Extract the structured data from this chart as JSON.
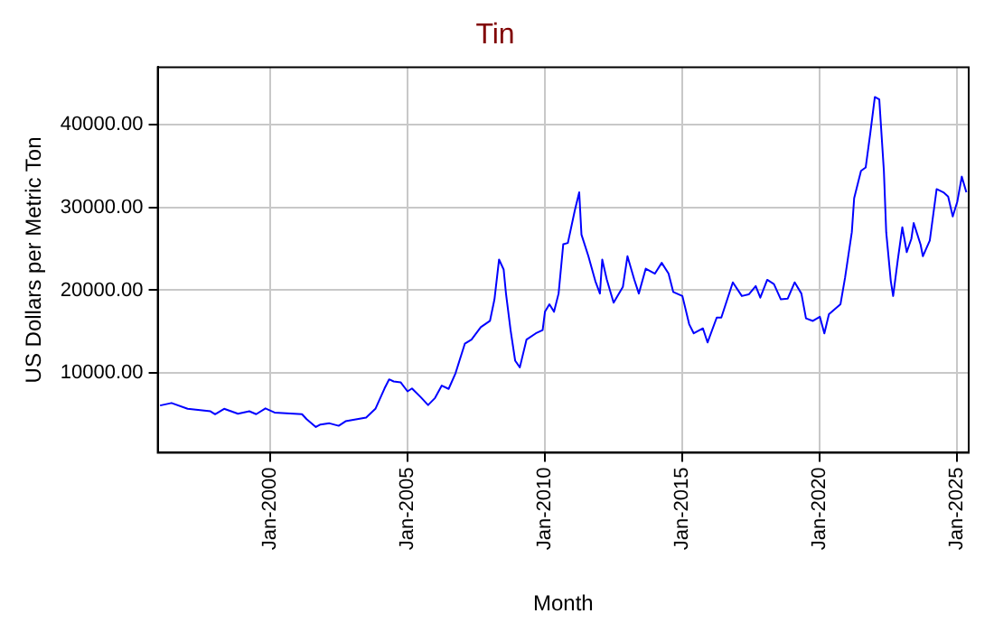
{
  "chart_data": {
    "type": "line",
    "title": "Tin",
    "xlabel": "Month",
    "ylabel": "US Dollars per Metric Ton",
    "x": [
      "1996-01",
      "1996-06",
      "1997-01",
      "1997-11",
      "1998-01",
      "1998-05",
      "1998-11",
      "1999-04",
      "1999-07",
      "1999-11",
      "2000-03",
      "2001-03",
      "2001-05",
      "2001-09",
      "2001-11",
      "2002-03",
      "2002-07",
      "2002-10",
      "2003-07",
      "2003-11",
      "2004-03",
      "2004-05",
      "2004-07",
      "2004-10",
      "2005-01",
      "2005-03",
      "2005-07",
      "2005-10",
      "2006-01",
      "2006-04",
      "2006-07",
      "2006-10",
      "2007-02",
      "2007-05",
      "2007-09",
      "2008-01",
      "2008-03",
      "2008-05",
      "2008-07",
      "2008-08",
      "2008-10",
      "2008-12",
      "2009-02",
      "2009-05",
      "2009-09",
      "2009-12",
      "2010-01",
      "2010-03",
      "2010-05",
      "2010-07",
      "2010-09",
      "2010-11",
      "2011-02",
      "2011-04",
      "2011-05",
      "2011-08",
      "2011-11",
      "2012-01",
      "2012-02",
      "2012-04",
      "2012-07",
      "2012-11",
      "2013-01",
      "2013-04",
      "2013-06",
      "2013-09",
      "2014-01",
      "2014-04",
      "2014-07",
      "2014-09",
      "2015-01",
      "2015-04",
      "2015-06",
      "2015-10",
      "2015-12",
      "2016-04",
      "2016-06",
      "2016-11",
      "2017-03",
      "2017-06",
      "2017-09",
      "2017-11",
      "2018-02",
      "2018-05",
      "2018-08",
      "2018-11",
      "2019-02",
      "2019-05",
      "2019-07",
      "2019-10",
      "2020-01",
      "2020-03",
      "2020-05",
      "2020-10",
      "2020-12",
      "2021-03",
      "2021-04",
      "2021-07",
      "2021-09",
      "2021-11",
      "2022-01",
      "2022-03",
      "2022-05",
      "2022-06",
      "2022-08",
      "2022-09",
      "2022-11",
      "2023-01",
      "2023-03",
      "2023-05",
      "2023-06",
      "2023-09",
      "2023-10",
      "2024-01",
      "2024-04",
      "2024-07",
      "2024-09",
      "2024-11",
      "2025-01",
      "2025-03",
      "2025-05"
    ],
    "series": [
      {
        "color": "#0000ff",
        "values": [
          6100,
          6400,
          5700,
          5400,
          5040,
          5700,
          5100,
          5400,
          5050,
          5750,
          5250,
          5050,
          4450,
          3500,
          3800,
          3950,
          3650,
          4200,
          4650,
          5700,
          8150,
          9250,
          9000,
          8900,
          7800,
          8150,
          7050,
          6150,
          7000,
          8500,
          8100,
          10000,
          13550,
          14050,
          15550,
          16300,
          18900,
          23700,
          22500,
          19600,
          15200,
          11500,
          10700,
          14050,
          14800,
          15200,
          17400,
          18300,
          17400,
          19600,
          25550,
          25700,
          29600,
          31800,
          26700,
          24100,
          21100,
          19600,
          23700,
          21300,
          18500,
          20400,
          24100,
          21300,
          19600,
          22600,
          22000,
          23300,
          22000,
          19800,
          19300,
          15900,
          14800,
          15400,
          13700,
          16700,
          16700,
          20950,
          19300,
          19500,
          20500,
          19100,
          21250,
          20750,
          18900,
          19000,
          20950,
          19600,
          16600,
          16300,
          16800,
          14800,
          17100,
          18300,
          21500,
          27000,
          31100,
          34400,
          34800,
          38900,
          43300,
          43000,
          34400,
          27000,
          21100,
          19300,
          23600,
          27600,
          24600,
          26200,
          28100,
          25500,
          24100,
          26000,
          32200,
          31800,
          31300,
          28900,
          30700,
          33700,
          31800
        ]
      }
    ],
    "xlim": [
      "1995-12",
      "2025-06"
    ],
    "xticks": [
      {
        "value": "2000-01",
        "label": "Jan-2000"
      },
      {
        "value": "2005-01",
        "label": "Jan-2005"
      },
      {
        "value": "2010-01",
        "label": "Jan-2010"
      },
      {
        "value": "2015-01",
        "label": "Jan-2015"
      },
      {
        "value": "2020-01",
        "label": "Jan-2020"
      },
      {
        "value": "2025-01",
        "label": "Jan-2025"
      }
    ],
    "ylim": [
      400,
      46900
    ],
    "yticks": [
      {
        "value": 10000,
        "label": "10000.00"
      },
      {
        "value": 20000,
        "label": "20000.00"
      },
      {
        "value": 30000,
        "label": "30000.00"
      },
      {
        "value": 40000,
        "label": "40000.00"
      }
    ],
    "grid": true,
    "marker": "none",
    "line_style": "solid"
  }
}
